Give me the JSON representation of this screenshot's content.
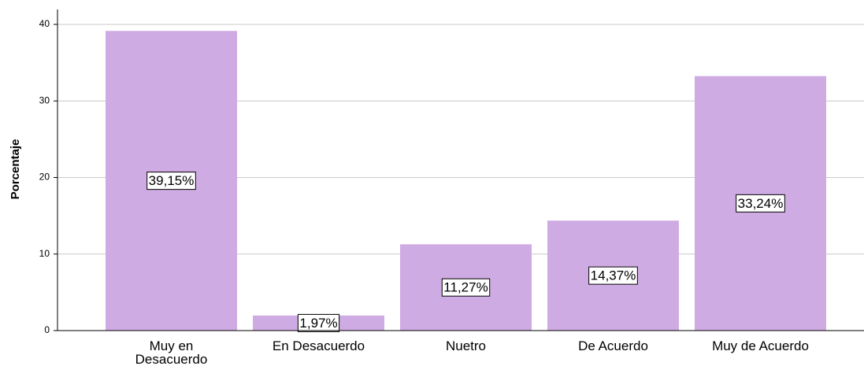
{
  "chart_data": {
    "type": "bar",
    "y_label": "Porcentaje",
    "categories": [
      "Muy en Desacuerdo",
      "En Desacuerdo",
      "Nuetro",
      "De Acuerdo",
      "Muy de Acuerdo"
    ],
    "values": [
      39.15,
      1.97,
      11.27,
      14.37,
      33.24
    ],
    "value_labels": [
      "39,15%",
      "1,97%",
      "11,27%",
      "14,37%",
      "33,24%"
    ],
    "color": "#cfabe3",
    "ylim": [
      0,
      40
    ],
    "yticks": [
      0,
      10,
      20,
      30,
      40
    ],
    "grid": true
  }
}
